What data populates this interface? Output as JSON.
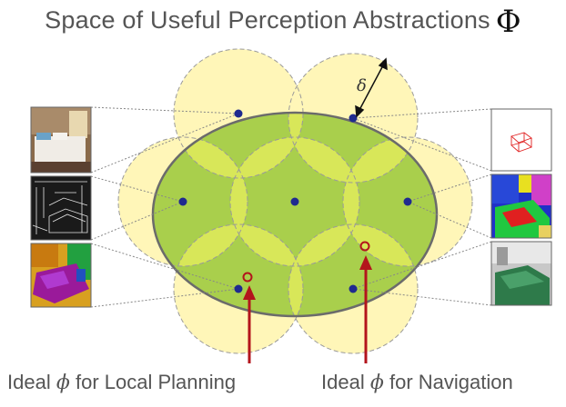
{
  "title": {
    "text": "Space of Useful Perception Abstractions",
    "symbol": "Φ"
  },
  "delta_label": "δ",
  "labels": {
    "left": {
      "prefix": "Ideal",
      "symbol": "ϕ",
      "suffix": "for Local Planning"
    },
    "right": {
      "prefix": "Ideal",
      "symbol": "ϕ",
      "suffix": "for Navigation"
    }
  },
  "colors": {
    "ellipse_fill": "#a9cf4c",
    "ellipse_stroke": "#6b6b6b",
    "circle_fill": "#fff6b8",
    "overlap_fill": "#dbe85a",
    "dot": "#1f2a8f",
    "ideal": "#b3141c",
    "connector": "#888888"
  },
  "thumbnails": {
    "left": [
      "bedroom-rgb-photo",
      "bedroom-edge-map",
      "bedroom-segmentation"
    ],
    "right": [
      "3d-bounding-box",
      "semantic-segmentation",
      "bedroom-depth-render"
    ]
  }
}
